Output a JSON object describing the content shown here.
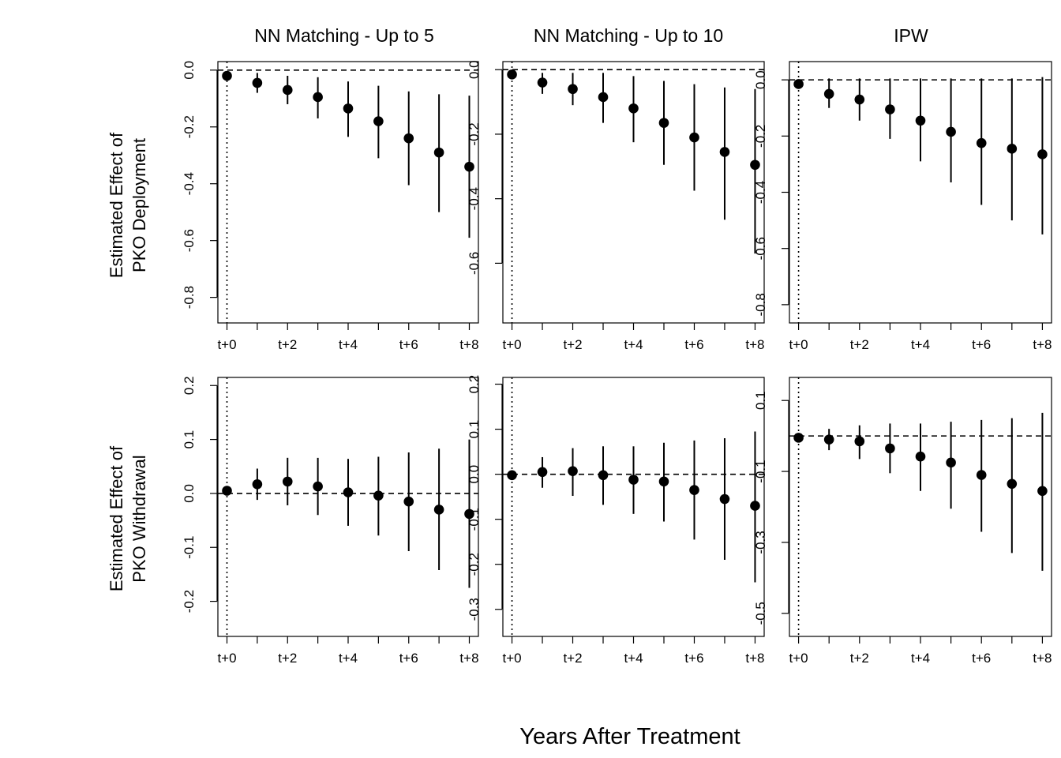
{
  "figure": {
    "x_title": "Years After Treatment",
    "column_titles": [
      "NN Matching - Up to 5",
      "NN Matching - Up to 10",
      "IPW"
    ],
    "row_labels": [
      [
        "Estimated Effect of",
        "PKO Deployment"
      ],
      [
        "Estimated Effect of",
        "PKO Withdrawal"
      ]
    ],
    "x_tick_labels": [
      "t+0",
      "t+2",
      "t+4",
      "t+6",
      "t+8"
    ]
  },
  "chart_data": [
    {
      "type": "scatter",
      "style": "point-estimate-with-interval",
      "title": "NN Matching - Up to 5",
      "row": "PKO Deployment",
      "xlabel": "Years After Treatment",
      "ylabel": "Estimated Effect of PKO Deployment",
      "x": [
        0,
        1,
        2,
        3,
        4,
        5,
        6,
        7,
        8
      ],
      "estimate": [
        -0.02,
        -0.045,
        -0.07,
        -0.095,
        -0.135,
        -0.18,
        -0.24,
        -0.29,
        -0.34
      ],
      "lower": [
        -0.03,
        -0.08,
        -0.12,
        -0.17,
        -0.235,
        -0.31,
        -0.405,
        -0.5,
        -0.59
      ],
      "upper": [
        -0.01,
        -0.01,
        -0.02,
        -0.025,
        -0.04,
        -0.055,
        -0.075,
        -0.085,
        -0.09
      ],
      "xlim": [
        -0.3,
        8.3
      ],
      "ylim": [
        -0.89,
        0.03
      ],
      "yticks": [
        0.0,
        -0.2,
        -0.4,
        -0.6,
        -0.8
      ],
      "ytick_labels": [
        "0.0",
        "-0.2",
        "-0.4",
        "-0.6",
        "-0.8"
      ],
      "reference_lines": {
        "horizontal_dashed": 0,
        "vertical_dotted": 0
      }
    },
    {
      "type": "scatter",
      "style": "point-estimate-with-interval",
      "title": "NN Matching - Up to 10",
      "row": "PKO Deployment",
      "xlabel": "Years After Treatment",
      "x": [
        0,
        1,
        2,
        3,
        4,
        5,
        6,
        7,
        8
      ],
      "estimate": [
        -0.015,
        -0.04,
        -0.06,
        -0.085,
        -0.12,
        -0.165,
        -0.21,
        -0.255,
        -0.295
      ],
      "lower": [
        -0.025,
        -0.075,
        -0.11,
        -0.165,
        -0.225,
        -0.295,
        -0.375,
        -0.465,
        -0.57
      ],
      "upper": [
        -0.005,
        -0.01,
        -0.01,
        -0.01,
        -0.02,
        -0.035,
        -0.045,
        -0.055,
        -0.06
      ],
      "xlim": [
        -0.3,
        8.3
      ],
      "ylim": [
        -0.785,
        0.025
      ],
      "yticks": [
        0.0,
        -0.2,
        -0.4,
        -0.6
      ],
      "ytick_labels": [
        "0.0",
        "-0.2",
        "-0.4",
        "-0.6"
      ],
      "reference_lines": {
        "horizontal_dashed": 0,
        "vertical_dotted": 0
      }
    },
    {
      "type": "scatter",
      "style": "point-estimate-with-interval",
      "title": "IPW",
      "row": "PKO Deployment",
      "xlabel": "Years After Treatment",
      "x": [
        0,
        1,
        2,
        3,
        4,
        5,
        6,
        7,
        8
      ],
      "estimate": [
        -0.015,
        -0.05,
        -0.07,
        -0.105,
        -0.145,
        -0.185,
        -0.225,
        -0.245,
        -0.265
      ],
      "lower": [
        -0.025,
        -0.1,
        -0.145,
        -0.21,
        -0.29,
        -0.365,
        -0.445,
        -0.5,
        -0.55
      ],
      "upper": [
        -0.005,
        0.005,
        0.005,
        0.005,
        0.005,
        0.005,
        0.005,
        0.005,
        0.01
      ],
      "xlim": [
        -0.3,
        8.3
      ],
      "ylim": [
        -0.865,
        0.065
      ],
      "yticks": [
        0.0,
        -0.2,
        -0.4,
        -0.6,
        -0.8
      ],
      "ytick_labels": [
        "0.0",
        "-0.2",
        "-0.4",
        "-0.6",
        "-0.8"
      ],
      "reference_lines": {
        "horizontal_dashed": 0,
        "vertical_dotted": 0
      }
    },
    {
      "type": "scatter",
      "style": "point-estimate-with-interval",
      "title": "NN Matching - Up to 5",
      "row": "PKO Withdrawal",
      "xlabel": "Years After Treatment",
      "ylabel": "Estimated Effect of PKO Withdrawal",
      "x": [
        0,
        1,
        2,
        3,
        4,
        5,
        6,
        7,
        8
      ],
      "estimate": [
        0.005,
        0.017,
        0.022,
        0.013,
        0.002,
        -0.004,
        -0.015,
        -0.03,
        -0.038
      ],
      "lower": [
        -0.003,
        -0.012,
        -0.022,
        -0.04,
        -0.06,
        -0.078,
        -0.107,
        -0.142,
        -0.175
      ],
      "upper": [
        0.013,
        0.046,
        0.066,
        0.066,
        0.064,
        0.068,
        0.076,
        0.083,
        0.1
      ],
      "xlim": [
        -0.3,
        8.3
      ],
      "ylim": [
        -0.265,
        0.215
      ],
      "yticks": [
        0.2,
        0.1,
        0.0,
        -0.1,
        -0.2
      ],
      "ytick_labels": [
        "0.2",
        "0.1",
        "0.0",
        "-0.1",
        "-0.2"
      ],
      "reference_lines": {
        "horizontal_dashed": 0,
        "vertical_dotted": 0
      }
    },
    {
      "type": "scatter",
      "style": "point-estimate-with-interval",
      "title": "NN Matching - Up to 10",
      "row": "PKO Withdrawal",
      "xlabel": "Years After Treatment",
      "x": [
        0,
        1,
        2,
        3,
        4,
        5,
        6,
        7,
        8
      ],
      "estimate": [
        -0.002,
        0.005,
        0.007,
        -0.002,
        -0.012,
        -0.016,
        -0.035,
        -0.055,
        -0.07
      ],
      "lower": [
        -0.01,
        -0.03,
        -0.048,
        -0.068,
        -0.088,
        -0.105,
        -0.145,
        -0.19,
        -0.24
      ],
      "upper": [
        0.006,
        0.038,
        0.058,
        0.062,
        0.062,
        0.07,
        0.075,
        0.08,
        0.095
      ],
      "xlim": [
        -0.3,
        8.3
      ],
      "ylim": [
        -0.36,
        0.215
      ],
      "yticks": [
        0.2,
        0.1,
        0.0,
        -0.1,
        -0.2,
        -0.3
      ],
      "ytick_labels": [
        "0.2",
        "0.1",
        "0.0",
        "-0.1",
        "-0.2",
        "-0.3"
      ],
      "reference_lines": {
        "horizontal_dashed": 0,
        "vertical_dotted": 0
      }
    },
    {
      "type": "scatter",
      "style": "point-estimate-with-interval",
      "title": "IPW",
      "row": "PKO Withdrawal",
      "xlabel": "Years After Treatment",
      "x": [
        0,
        1,
        2,
        3,
        4,
        5,
        6,
        7,
        8
      ],
      "estimate": [
        -0.005,
        -0.01,
        -0.015,
        -0.035,
        -0.058,
        -0.075,
        -0.11,
        -0.135,
        -0.155
      ],
      "lower": [
        -0.012,
        -0.04,
        -0.065,
        -0.105,
        -0.155,
        -0.205,
        -0.27,
        -0.33,
        -0.38
      ],
      "upper": [
        0.002,
        0.02,
        0.03,
        0.035,
        0.035,
        0.04,
        0.045,
        0.05,
        0.065
      ],
      "xlim": [
        -0.3,
        8.3
      ],
      "ylim": [
        -0.565,
        0.165
      ],
      "yticks": [
        0.1,
        -0.1,
        -0.3,
        -0.5
      ],
      "ytick_labels": [
        "0.1",
        "-0.1",
        "-0.3",
        "-0.5"
      ],
      "reference_lines": {
        "horizontal_dashed": 0,
        "vertical_dotted": 0
      }
    }
  ]
}
